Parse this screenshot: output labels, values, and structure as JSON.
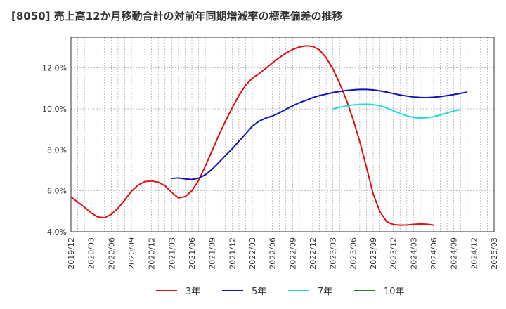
{
  "chart_data": {
    "type": "line",
    "title": "[8050]  売上高12か月移動合計の対前年同期増減率の標準偏差の推移",
    "y_tick_labels": [
      "4.0%",
      "6.0%",
      "8.0%",
      "10.0%",
      "12.0%"
    ],
    "y_ticks": [
      4,
      6,
      8,
      10,
      12
    ],
    "ylim": [
      4,
      13.5
    ],
    "x_tick_labels": [
      "2019/12",
      "2020/03",
      "2020/06",
      "2020/09",
      "2020/12",
      "2021/03",
      "2021/06",
      "2021/09",
      "2021/12",
      "2022/03",
      "2022/06",
      "2022/09",
      "2022/12",
      "2023/03",
      "2023/06",
      "2023/09",
      "2023/12",
      "2024/03",
      "2024/06",
      "2024/09",
      "2024/12",
      "2025/03"
    ],
    "grid": true,
    "legend_position": "bottom",
    "series": [
      {
        "name": "3年",
        "color": "#dd1111",
        "start_index": 0,
        "values": [
          5.7,
          5.45,
          5.2,
          4.92,
          4.72,
          4.68,
          4.85,
          5.15,
          5.55,
          5.98,
          6.28,
          6.45,
          6.48,
          6.42,
          6.25,
          5.92,
          5.65,
          5.72,
          6.0,
          6.5,
          7.2,
          7.95,
          8.7,
          9.4,
          10.05,
          10.65,
          11.15,
          11.5,
          11.72,
          11.98,
          12.25,
          12.5,
          12.72,
          12.9,
          13.02,
          13.08,
          13.05,
          12.88,
          12.5,
          11.95,
          11.25,
          10.45,
          9.5,
          8.4,
          7.15,
          5.85,
          4.98,
          4.5,
          4.35,
          4.32,
          4.33,
          4.36,
          4.38,
          4.37,
          4.32
        ]
      },
      {
        "name": "5年",
        "color": "#1111bb",
        "start_index": 15,
        "values": [
          6.6,
          6.63,
          6.58,
          6.55,
          6.62,
          6.78,
          7.05,
          7.38,
          7.72,
          8.05,
          8.42,
          8.78,
          9.15,
          9.4,
          9.55,
          9.65,
          9.8,
          9.98,
          10.15,
          10.3,
          10.42,
          10.55,
          10.65,
          10.72,
          10.8,
          10.85,
          10.9,
          10.93,
          10.95,
          10.95,
          10.93,
          10.88,
          10.82,
          10.75,
          10.68,
          10.63,
          10.58,
          10.56,
          10.55,
          10.57,
          10.6,
          10.65,
          10.7,
          10.76,
          10.82
        ]
      },
      {
        "name": "7年",
        "color": "#22dddd",
        "start_index": 39,
        "values": [
          10.0,
          10.08,
          10.14,
          10.19,
          10.22,
          10.23,
          10.21,
          10.15,
          10.05,
          9.9,
          9.78,
          9.66,
          9.58,
          9.55,
          9.57,
          9.62,
          9.7,
          9.8,
          9.9,
          9.97
        ]
      },
      {
        "name": "10年",
        "color": "#228822",
        "start_index": 0,
        "values": []
      }
    ]
  }
}
